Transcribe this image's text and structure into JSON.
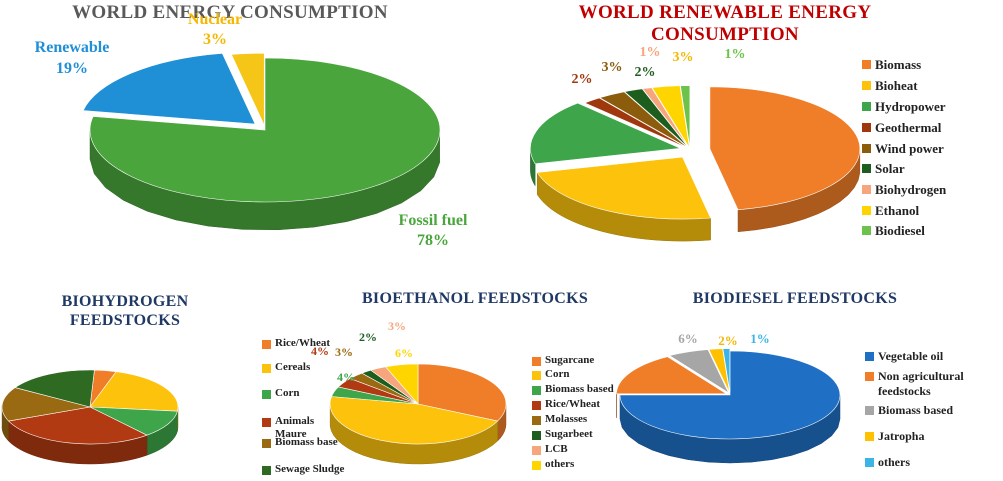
{
  "chart_data": [
    {
      "type": "pie",
      "title": "WORLD ENERGY CONSUMPTION",
      "slices": [
        {
          "label": "Fossil fuel",
          "value": 78,
          "value_text": "78%",
          "color": "#4aa63c"
        },
        {
          "label": "Renewable",
          "value": 19,
          "value_text": "19%",
          "color": "#1f8fd6"
        },
        {
          "label": "Nuclear",
          "value": 3,
          "value_text": "3%",
          "color": "#f5c518"
        }
      ]
    },
    {
      "type": "pie",
      "title": "WORLD RENEWABLE ENERGY CONSUMPTION",
      "legend": "right",
      "slices": [
        {
          "label": "Biomass",
          "value": 47,
          "value_text": "",
          "color": "#f07d28"
        },
        {
          "label": "Bioheat",
          "value": 24,
          "value_text": "",
          "color": "#fcc20c"
        },
        {
          "label": "Hydropower",
          "value": 17,
          "value_text": "",
          "color": "#3ea54a"
        },
        {
          "label": "Geothermal",
          "value": 2,
          "value_text": "2%",
          "color": "#a0380e"
        },
        {
          "label": "Wind power",
          "value": 3,
          "value_text": "3%",
          "color": "#8a5c0c"
        },
        {
          "label": "Solar",
          "value": 2,
          "value_text": "2%",
          "color": "#1d5e1e"
        },
        {
          "label": "Biohydrogen",
          "value": 1,
          "value_text": "1%",
          "color": "#f6a57c"
        },
        {
          "label": "Ethanol",
          "value": 3,
          "value_text": "3%",
          "color": "#ffd500"
        },
        {
          "label": "Biodiesel",
          "value": 1,
          "value_text": "1%",
          "color": "#6cc24a"
        }
      ]
    },
    {
      "type": "pie",
      "title": "BIOHYDROGEN FEEDSTOCKS",
      "legend": "right",
      "slices": [
        {
          "label": "Rice/Wheat",
          "value": 4,
          "color": "#f07d28"
        },
        {
          "label": "Cereals",
          "value": 22,
          "color": "#fcc20c"
        },
        {
          "label": "Corn",
          "value": 12,
          "color": "#3ea54a"
        },
        {
          "label": "Animals Maure",
          "value": 30,
          "color": "#b13a12"
        },
        {
          "label": "Biomass base",
          "value": 15,
          "color": "#9a6a12"
        },
        {
          "label": "Sewage Sludge",
          "value": 17,
          "color": "#2f6a23"
        }
      ]
    },
    {
      "type": "pie",
      "title": "BIOETHANOL FEEDSTOCKS",
      "legend": "right",
      "slices": [
        {
          "label": "Sugarcane",
          "value": 32,
          "value_text": "",
          "color": "#f07d28"
        },
        {
          "label": "Corn",
          "value": 46,
          "value_text": "",
          "color": "#fcc20c"
        },
        {
          "label": "Biomass based",
          "value": 4,
          "value_text": "4%",
          "color": "#3ea54a"
        },
        {
          "label": "Rice/Wheat",
          "value": 4,
          "value_text": "4%",
          "color": "#b13a12"
        },
        {
          "label": "Molasses",
          "value": 3,
          "value_text": "3%",
          "color": "#9a6a12"
        },
        {
          "label": "Sugarbeet",
          "value": 2,
          "value_text": "2%",
          "color": "#1d5e1e"
        },
        {
          "label": "LCB",
          "value": 3,
          "value_text": "3%",
          "color": "#f6a57c"
        },
        {
          "label": "others",
          "value": 6,
          "value_text": "6%",
          "color": "#ffd500"
        }
      ]
    },
    {
      "type": "pie",
      "title": "BIODIESEL FEEDSTOCKS",
      "legend": "right",
      "slices": [
        {
          "label": "Vegetable oil",
          "value": 75,
          "value_text": "",
          "color": "#1f6fc4"
        },
        {
          "label": "Non agricultural feedstocks",
          "value": 16,
          "value_text": "",
          "color": "#f07d28"
        },
        {
          "label": "Biomass based",
          "value": 6,
          "value_text": "6%",
          "color": "#a6a6a6"
        },
        {
          "label": "Jatropha",
          "value": 2,
          "value_text": "2%",
          "color": "#ffc000"
        },
        {
          "label": "others",
          "value": 1,
          "value_text": "1%",
          "color": "#3cb4e6"
        }
      ]
    }
  ]
}
